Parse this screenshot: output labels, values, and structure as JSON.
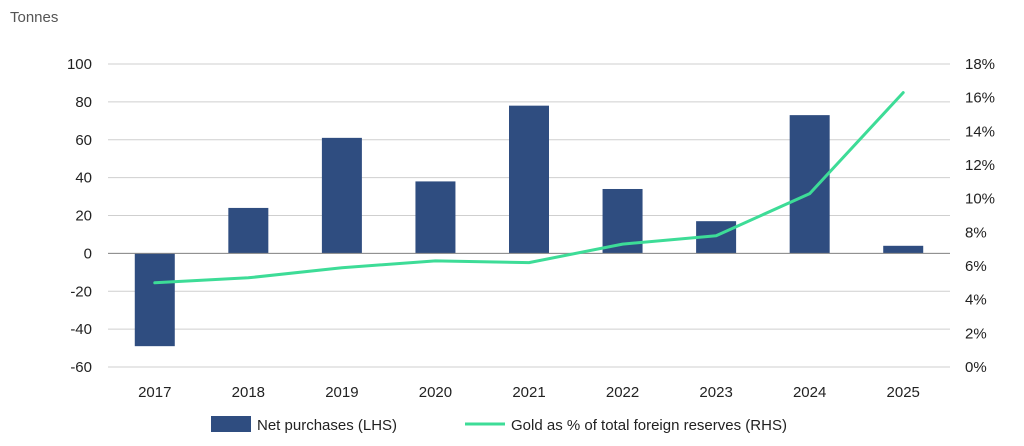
{
  "chart_data": {
    "type": "bar",
    "title": "",
    "y_unit_label": "Tonnes",
    "categories": [
      "2017",
      "2018",
      "2019",
      "2020",
      "2021",
      "2022",
      "2023",
      "2024",
      "2025"
    ],
    "series": [
      {
        "name": "Net purchases (LHS)",
        "type": "bar",
        "axis": "left",
        "color": "#2f4d80",
        "values": [
          -49,
          24,
          61,
          38,
          78,
          34,
          17,
          73,
          4
        ]
      },
      {
        "name": "Gold as % of total foreign reserves (RHS)",
        "type": "line",
        "axis": "right",
        "color": "#3ddc97",
        "values": [
          5.0,
          5.3,
          5.9,
          6.3,
          6.2,
          7.3,
          7.8,
          10.3,
          16.3
        ]
      }
    ],
    "y_left": {
      "ylim": [
        -60,
        100
      ],
      "ticks": [
        100,
        80,
        60,
        40,
        20,
        0,
        -20,
        -40,
        -60
      ],
      "tick_labels": [
        "100",
        "80",
        "60",
        "40",
        "20",
        "0",
        "-20",
        "-40",
        "-60"
      ]
    },
    "y_right": {
      "ylim": [
        0,
        18
      ],
      "ticks": [
        18,
        16,
        14,
        12,
        10,
        8,
        6,
        4,
        2,
        0
      ],
      "tick_labels": [
        "18%",
        "16%",
        "14%",
        "12%",
        "10%",
        "8%",
        "6%",
        "4%",
        "2%",
        "0%"
      ]
    },
    "grid": true,
    "legend": {
      "position": "bottom",
      "items": [
        "Net purchases (LHS)",
        "Gold as % of total foreign reserves (RHS)"
      ]
    }
  }
}
